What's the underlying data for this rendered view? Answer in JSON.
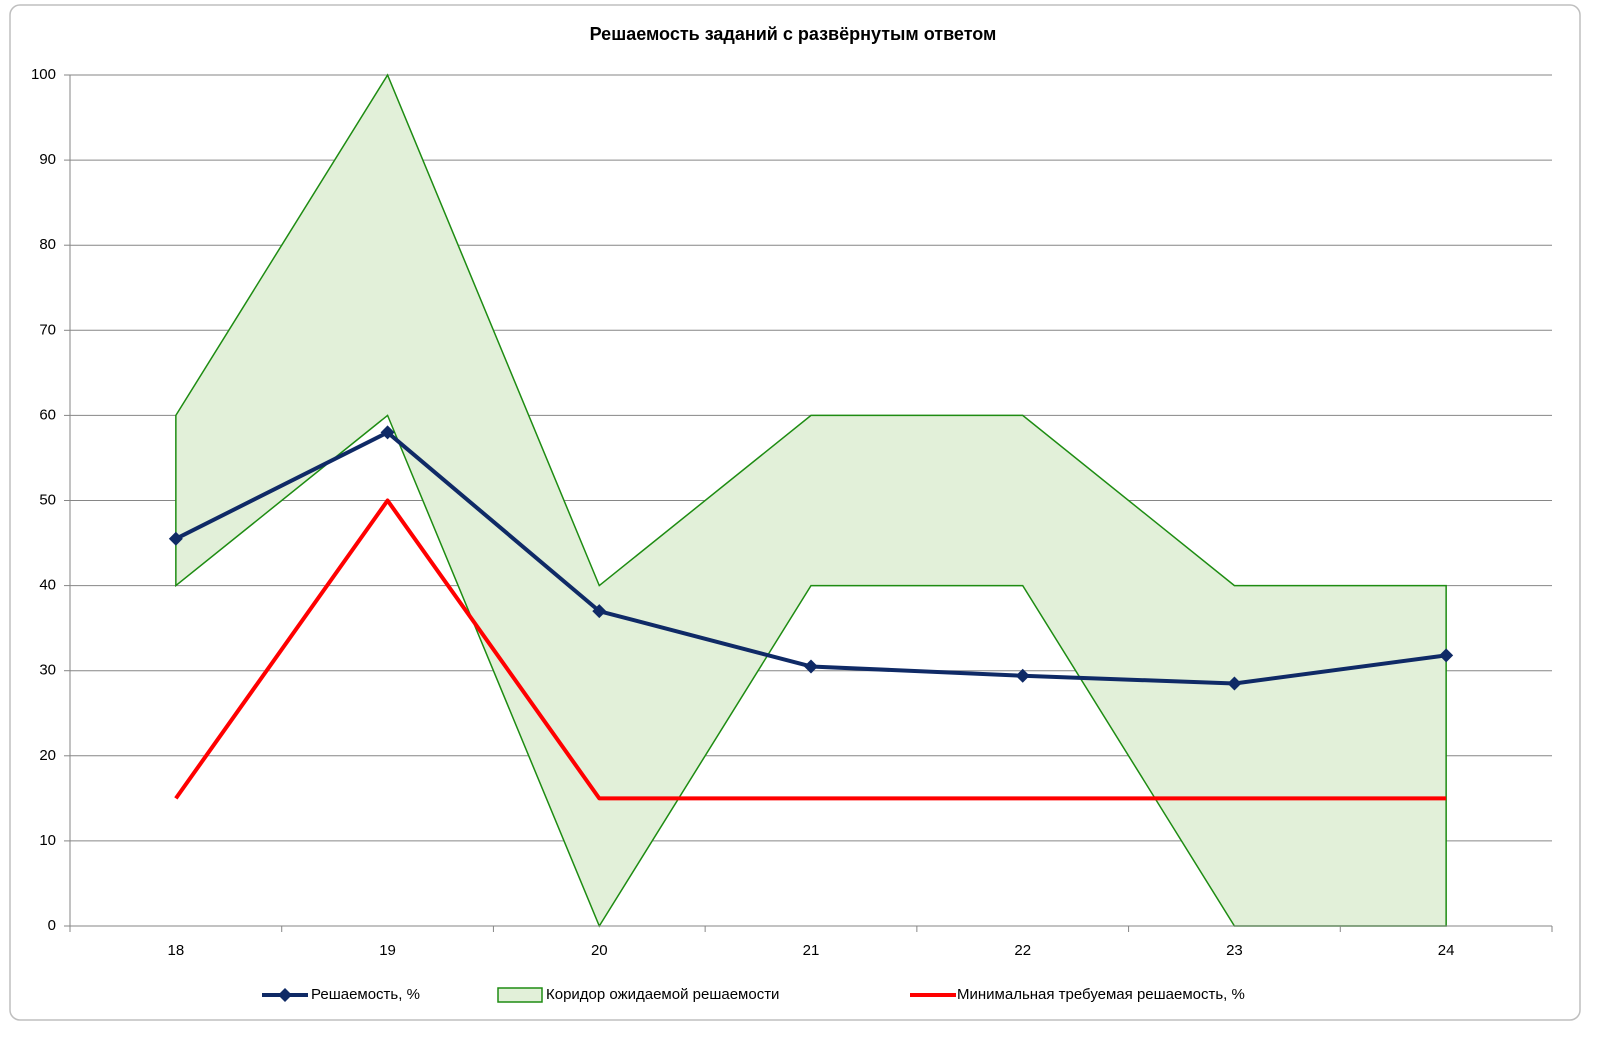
{
  "chart_data": {
    "type": "line",
    "title": "Решаемость заданий с развёрнутым ответом",
    "categories": [
      "18",
      "19",
      "20",
      "21",
      "22",
      "23",
      "24"
    ],
    "series": [
      {
        "name": "Решаемость, %",
        "color": "#0f2a66",
        "values": [
          45.5,
          58,
          37,
          30.5,
          29.4,
          28.5,
          31.8
        ]
      },
      {
        "name": "Минимальная требуемая решаемость, %",
        "color": "#ff0000",
        "values": [
          15,
          50,
          15,
          15,
          15,
          15,
          15
        ]
      }
    ],
    "band": {
      "name": "Коридор ожидаемой решаемости",
      "color": "#1e8c12",
      "fill": "#e2f0d9",
      "lower": [
        40,
        60,
        0,
        40,
        40,
        0,
        0
      ],
      "upper": [
        60,
        100,
        40,
        60,
        60,
        40,
        40
      ]
    },
    "ylim": [
      0,
      100
    ],
    "yticks": [
      0,
      10,
      20,
      30,
      40,
      50,
      60,
      70,
      80,
      90,
      100
    ],
    "grid": true,
    "legend": "bottom"
  }
}
